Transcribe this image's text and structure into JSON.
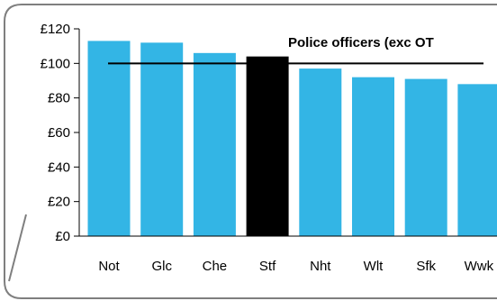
{
  "chart_data": {
    "type": "bar",
    "title": "Police officers (exc OT",
    "categories": [
      "Not",
      "Glc",
      "Che",
      "Stf",
      "Nht",
      "Wlt",
      "Sfk",
      "Wwk"
    ],
    "values": [
      113,
      112,
      106,
      104,
      97,
      92,
      91,
      88
    ],
    "highlight_category": "Stf",
    "reference_line": 100,
    "ylim": [
      0,
      120
    ],
    "yticks": [
      "£0",
      "£20",
      "£40",
      "£60",
      "£80",
      "£100",
      "£120"
    ],
    "grid": false,
    "legend": "none",
    "colors": {
      "bar": "#33b5e5",
      "highlight": "#000000",
      "reference_line": "#000000",
      "frame": "#7f7f7f"
    }
  }
}
